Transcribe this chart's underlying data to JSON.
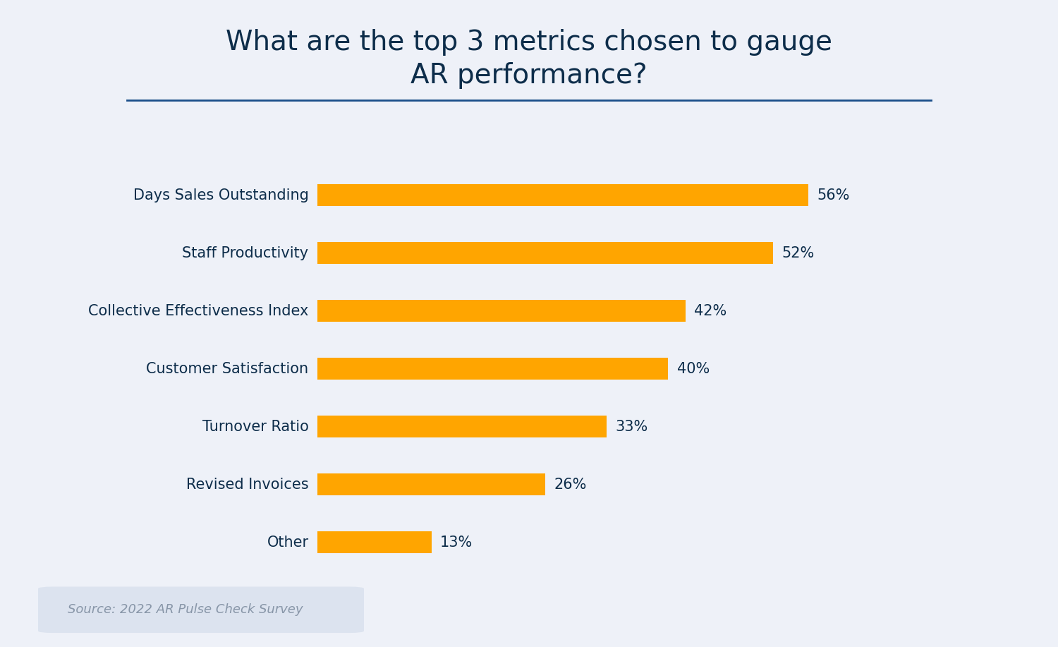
{
  "title": "What are the top 3 metrics chosen to gauge\nAR performance?",
  "categories": [
    "Days Sales Outstanding",
    "Staff Productivity",
    "Collective Effectiveness Index",
    "Customer Satisfaction",
    "Turnover Ratio",
    "Revised Invoices",
    "Other"
  ],
  "values": [
    56,
    52,
    42,
    40,
    33,
    26,
    13
  ],
  "bar_color": "#FFA500",
  "title_color": "#0d2d4a",
  "label_color": "#0d2d4a",
  "value_color": "#0d2d4a",
  "background_color": "#eef1f8",
  "source_text": "Source: 2022 AR Pulse Check Survey",
  "source_box_color": "#dce3ef",
  "source_text_color": "#8896a8",
  "title_fontsize": 28,
  "label_fontsize": 15,
  "value_fontsize": 15,
  "source_fontsize": 13,
  "bar_height": 0.38,
  "xlim": [
    0,
    70
  ],
  "divider_color": "#1a4f8a",
  "divider_linewidth": 2.0
}
